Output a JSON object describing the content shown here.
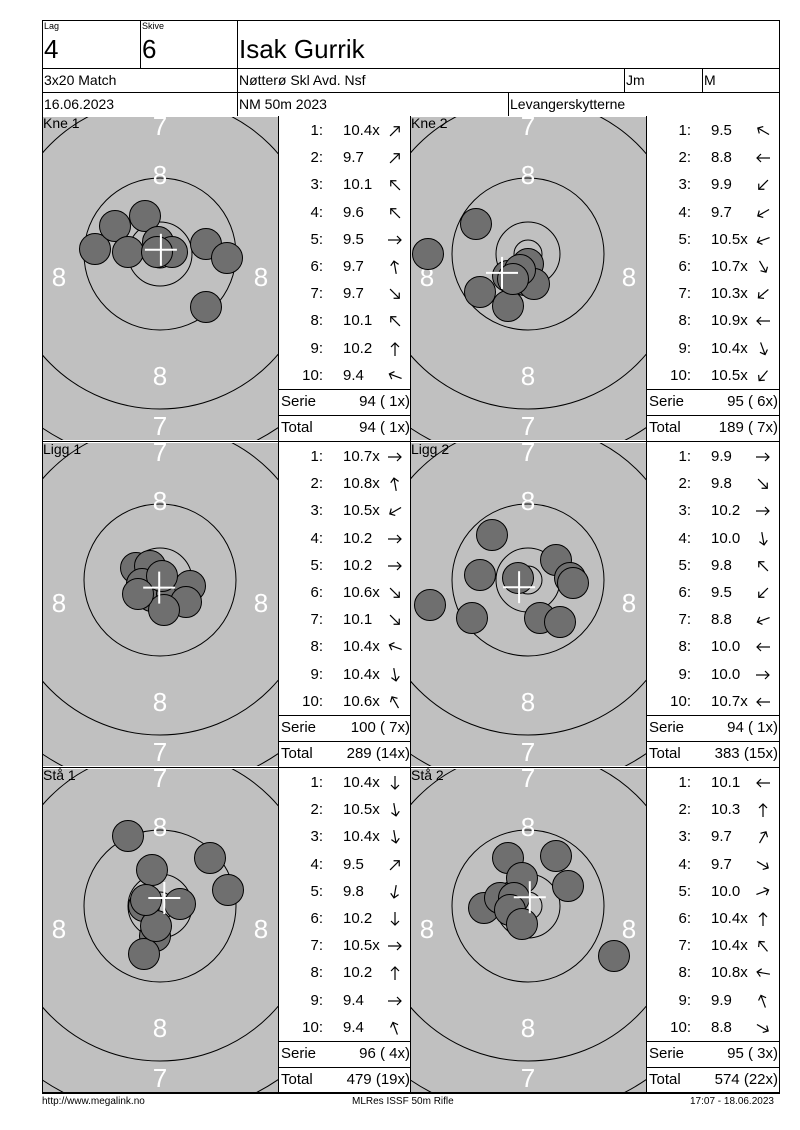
{
  "header": {
    "lag_label": "Lag",
    "lag_value": "4",
    "skive_label": "Skive",
    "skive_value": "6",
    "name": "Isak Gurrik",
    "program": "3x20 Match",
    "club": "Nøtterø Skl Avd. Nsf",
    "class": "Jm",
    "class2": "M",
    "date": "16.06.2023",
    "event": "NM 50m 2023",
    "host": "Levangerskytterne"
  },
  "series": [
    {
      "name": "Kne 1",
      "shots": [
        {
          "n": "1:",
          "v": "10.4x",
          "dir": 45
        },
        {
          "n": "2:",
          "v": "9.7",
          "dir": 45
        },
        {
          "n": "3:",
          "v": "10.1",
          "dir": -45
        },
        {
          "n": "4:",
          "v": "9.6",
          "dir": -45
        },
        {
          "n": "5:",
          "v": "9.5",
          "dir": 90
        },
        {
          "n": "6:",
          "v": "9.7",
          "dir": -10
        },
        {
          "n": "7:",
          "v": "9.7",
          "dir": 135
        },
        {
          "n": "8:",
          "v": "10.1",
          "dir": -45
        },
        {
          "n": "9:",
          "v": "10.2",
          "dir": 0
        },
        {
          "n": "10:",
          "v": "9.4",
          "dir": -70
        }
      ],
      "serie_label": "Serie",
      "serie_value": "94 ( 1x)",
      "total_label": "Total",
      "total_value": "94 ( 1x)"
    },
    {
      "name": "Kne 2",
      "shots": [
        {
          "n": "1:",
          "v": "9.5",
          "dir": -60
        },
        {
          "n": "2:",
          "v": "8.8",
          "dir": -90
        },
        {
          "n": "3:",
          "v": "9.9",
          "dir": -135
        },
        {
          "n": "4:",
          "v": "9.7",
          "dir": -120
        },
        {
          "n": "5:",
          "v": "10.5x",
          "dir": -110
        },
        {
          "n": "6:",
          "v": "10.7x",
          "dir": 150
        },
        {
          "n": "7:",
          "v": "10.3x",
          "dir": -130
        },
        {
          "n": "8:",
          "v": "10.9x",
          "dir": -90
        },
        {
          "n": "9:",
          "v": "10.4x",
          "dir": 160
        },
        {
          "n": "10:",
          "v": "10.5x",
          "dir": -140
        }
      ],
      "serie_label": "Serie",
      "serie_value": "95 ( 6x)",
      "total_label": "Total",
      "total_value": "189 ( 7x)"
    },
    {
      "name": "Ligg 1",
      "shots": [
        {
          "n": "1:",
          "v": "10.7x",
          "dir": 90
        },
        {
          "n": "2:",
          "v": "10.8x",
          "dir": -10
        },
        {
          "n": "3:",
          "v": "10.5x",
          "dir": -120
        },
        {
          "n": "4:",
          "v": "10.2",
          "dir": 90
        },
        {
          "n": "5:",
          "v": "10.2",
          "dir": 90
        },
        {
          "n": "6:",
          "v": "10.6x",
          "dir": 135
        },
        {
          "n": "7:",
          "v": "10.1",
          "dir": 135
        },
        {
          "n": "8:",
          "v": "10.4x",
          "dir": -70
        },
        {
          "n": "9:",
          "v": "10.4x",
          "dir": 170
        },
        {
          "n": "10:",
          "v": "10.6x",
          "dir": -30
        }
      ],
      "serie_label": "Serie",
      "serie_value": "100 ( 7x)",
      "total_label": "Total",
      "total_value": "289 (14x)"
    },
    {
      "name": "Ligg 2",
      "shots": [
        {
          "n": "1:",
          "v": "9.9",
          "dir": 90
        },
        {
          "n": "2:",
          "v": "9.8",
          "dir": 135
        },
        {
          "n": "3:",
          "v": "10.2",
          "dir": 90
        },
        {
          "n": "4:",
          "v": "10.0",
          "dir": 170
        },
        {
          "n": "5:",
          "v": "9.8",
          "dir": -45
        },
        {
          "n": "6:",
          "v": "9.5",
          "dir": -135
        },
        {
          "n": "7:",
          "v": "8.8",
          "dir": -110
        },
        {
          "n": "8:",
          "v": "10.0",
          "dir": -90
        },
        {
          "n": "9:",
          "v": "10.0",
          "dir": 90
        },
        {
          "n": "10:",
          "v": "10.7x",
          "dir": -90
        }
      ],
      "serie_label": "Serie",
      "serie_value": "94 ( 1x)",
      "total_label": "Total",
      "total_value": "383 (15x)"
    },
    {
      "name": "Stå 1",
      "shots": [
        {
          "n": "1:",
          "v": "10.4x",
          "dir": 180
        },
        {
          "n": "2:",
          "v": "10.5x",
          "dir": 170
        },
        {
          "n": "3:",
          "v": "10.4x",
          "dir": 170
        },
        {
          "n": "4:",
          "v": "9.5",
          "dir": 45
        },
        {
          "n": "5:",
          "v": "9.8",
          "dir": -170
        },
        {
          "n": "6:",
          "v": "10.2",
          "dir": 180
        },
        {
          "n": "7:",
          "v": "10.5x",
          "dir": 90
        },
        {
          "n": "8:",
          "v": "10.2",
          "dir": 0
        },
        {
          "n": "9:",
          "v": "9.4",
          "dir": 90
        },
        {
          "n": "10:",
          "v": "9.4",
          "dir": -20
        }
      ],
      "serie_label": "Serie",
      "serie_value": "96 ( 4x)",
      "total_label": "Total",
      "total_value": "479 (19x)"
    },
    {
      "name": "Stå 2",
      "shots": [
        {
          "n": "1:",
          "v": "10.1",
          "dir": -90
        },
        {
          "n": "2:",
          "v": "10.3",
          "dir": 0
        },
        {
          "n": "3:",
          "v": "9.7",
          "dir": 30
        },
        {
          "n": "4:",
          "v": "9.7",
          "dir": 120
        },
        {
          "n": "5:",
          "v": "10.0",
          "dir": 70
        },
        {
          "n": "6:",
          "v": "10.4x",
          "dir": 0
        },
        {
          "n": "7:",
          "v": "10.4x",
          "dir": -40
        },
        {
          "n": "8:",
          "v": "10.8x",
          "dir": -80
        },
        {
          "n": "9:",
          "v": "9.9",
          "dir": -20
        },
        {
          "n": "10:",
          "v": "8.8",
          "dir": 120
        }
      ],
      "serie_label": "Serie",
      "serie_value": "95 ( 3x)",
      "total_label": "Total",
      "total_value": "574 (22x)"
    }
  ],
  "ring_labels": {
    "r7": "7",
    "r8": "8"
  },
  "footer": {
    "left": "http://www.megalink.no",
    "center": "MLRes ISSF 50m Rifle",
    "right": "17:07 - 18.06.2023"
  }
}
